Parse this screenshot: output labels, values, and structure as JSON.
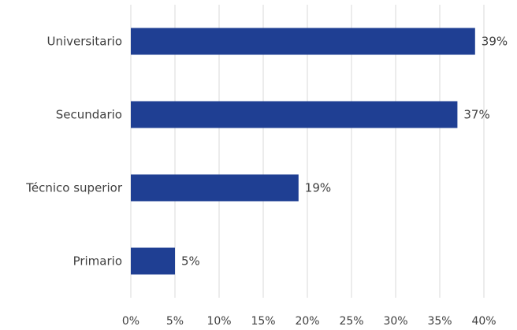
{
  "chart_data": {
    "type": "bar",
    "orientation": "horizontal",
    "categories": [
      "Universitario",
      "Secundario",
      "Técnico superior",
      "Primario"
    ],
    "values": [
      39,
      37,
      19,
      5
    ],
    "data_labels": [
      "39%",
      "37%",
      "19%",
      "5%"
    ],
    "x_ticks": [
      "0%",
      "5%",
      "10%",
      "15%",
      "20%",
      "25%",
      "30%",
      "35%",
      "40%"
    ],
    "xlim": [
      0,
      40
    ],
    "grid": true,
    "title": "",
    "xlabel": "",
    "ylabel": "",
    "bar_color": "#1f3f93"
  }
}
